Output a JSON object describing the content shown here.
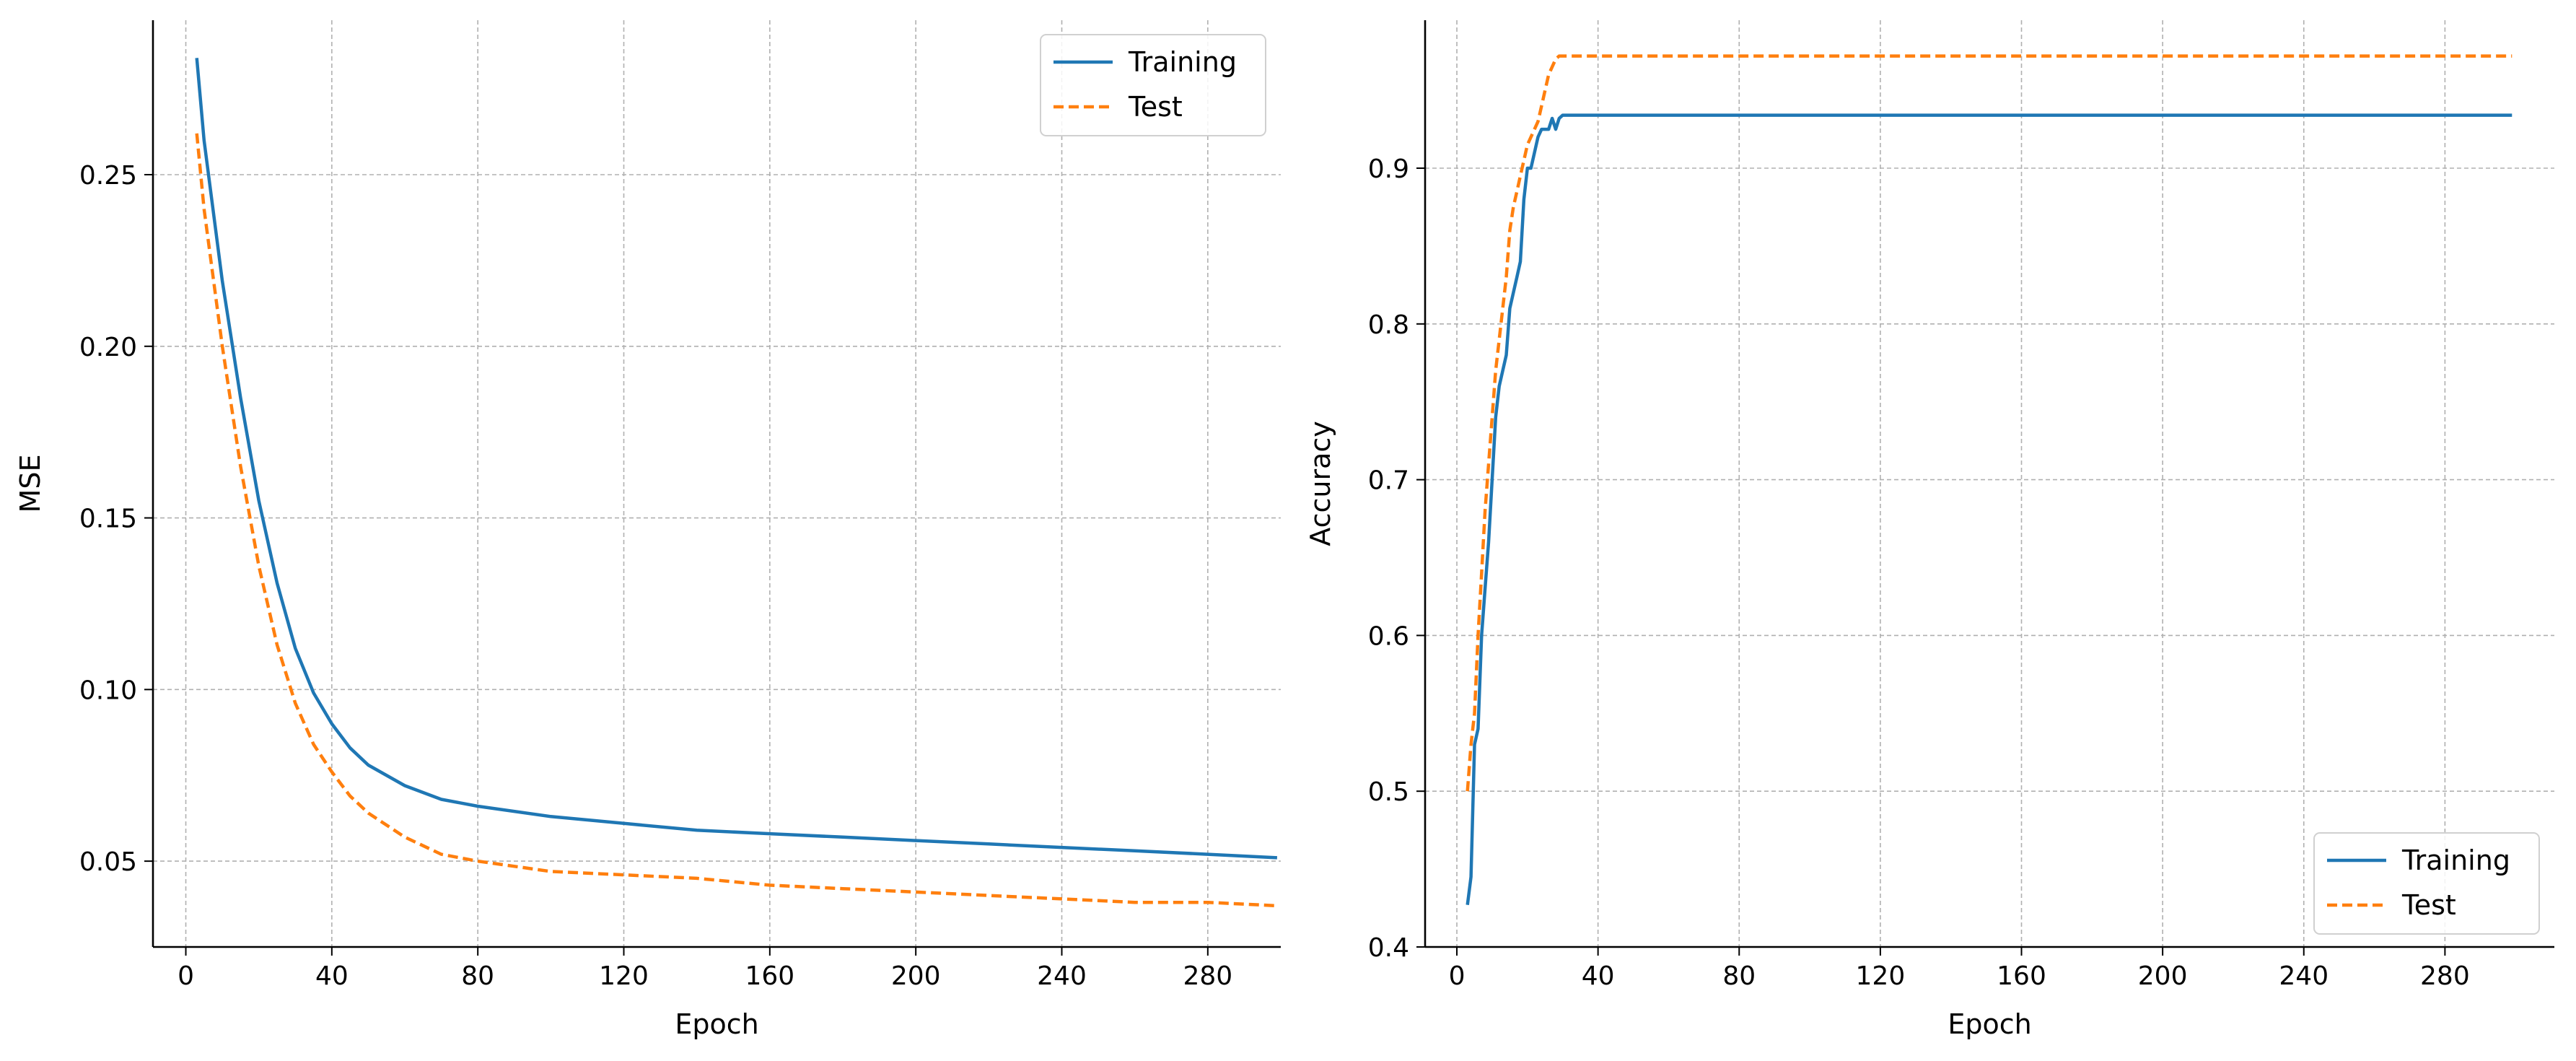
{
  "chart_data": [
    {
      "type": "line",
      "xlabel": "Epoch",
      "ylabel": "MSE",
      "xlim": [
        -9,
        300
      ],
      "ylim": [
        0.025,
        0.295
      ],
      "xticks": [
        "0",
        "40",
        "80",
        "120",
        "160",
        "200",
        "240",
        "280"
      ],
      "yticks": [
        "0.05",
        "0.10",
        "0.15",
        "0.20",
        "0.25"
      ],
      "grid": true,
      "legend_position": "top-right",
      "series": [
        {
          "name": "Training",
          "color": "#1f77b4",
          "dash": "solid",
          "x": [
            3,
            5,
            10,
            15,
            20,
            25,
            30,
            35,
            40,
            45,
            50,
            60,
            70,
            80,
            100,
            120,
            140,
            160,
            180,
            200,
            220,
            240,
            260,
            280,
            299
          ],
          "y": [
            0.284,
            0.26,
            0.219,
            0.185,
            0.155,
            0.131,
            0.112,
            0.099,
            0.09,
            0.083,
            0.078,
            0.072,
            0.068,
            0.066,
            0.063,
            0.061,
            0.059,
            0.058,
            0.057,
            0.056,
            0.055,
            0.054,
            0.053,
            0.052,
            0.051
          ]
        },
        {
          "name": "Test",
          "color": "#ff7f0e",
          "dash": "dashed",
          "x": [
            3,
            5,
            10,
            15,
            20,
            25,
            30,
            35,
            40,
            45,
            50,
            60,
            70,
            80,
            100,
            120,
            140,
            160,
            180,
            200,
            220,
            240,
            260,
            280,
            299
          ],
          "y": [
            0.262,
            0.24,
            0.2,
            0.165,
            0.136,
            0.113,
            0.096,
            0.084,
            0.076,
            0.069,
            0.064,
            0.057,
            0.052,
            0.05,
            0.047,
            0.046,
            0.045,
            0.043,
            0.042,
            0.041,
            0.04,
            0.039,
            0.038,
            0.038,
            0.037
          ]
        }
      ]
    },
    {
      "type": "line",
      "xlabel": "Epoch",
      "ylabel": "Accuracy",
      "xlim": [
        -9,
        311
      ],
      "ylim": [
        0.4,
        0.995
      ],
      "xticks": [
        "0",
        "40",
        "80",
        "120",
        "160",
        "200",
        "240",
        "280"
      ],
      "yticks": [
        "0.4",
        "0.5",
        "0.6",
        "0.7",
        "0.8",
        "0.9"
      ],
      "grid": true,
      "legend_position": "bottom-right",
      "series": [
        {
          "name": "Training",
          "color": "#1f77b4",
          "dash": "solid",
          "x": [
            3,
            4,
            5,
            6,
            7,
            8,
            9,
            10,
            11,
            12,
            13,
            14,
            15,
            16,
            17,
            18,
            19,
            20,
            21,
            22,
            23,
            24,
            25,
            26,
            27,
            28,
            29,
            30,
            35,
            100,
            200,
            299
          ],
          "y": [
            0.427,
            0.445,
            0.53,
            0.54,
            0.6,
            0.63,
            0.66,
            0.7,
            0.74,
            0.76,
            0.77,
            0.78,
            0.81,
            0.82,
            0.83,
            0.84,
            0.88,
            0.9,
            0.9,
            0.91,
            0.92,
            0.925,
            0.925,
            0.925,
            0.932,
            0.925,
            0.932,
            0.934,
            0.934,
            0.934,
            0.934,
            0.934
          ]
        },
        {
          "name": "Test",
          "color": "#ff7f0e",
          "dash": "dashed",
          "x": [
            3,
            4,
            5,
            6,
            7,
            8,
            9,
            10,
            11,
            12,
            13,
            14,
            15,
            16,
            17,
            18,
            19,
            20,
            21,
            22,
            23,
            24,
            25,
            26,
            27,
            28,
            29,
            30,
            35,
            100,
            200,
            299
          ],
          "y": [
            0.5,
            0.53,
            0.55,
            0.6,
            0.64,
            0.68,
            0.71,
            0.74,
            0.77,
            0.79,
            0.81,
            0.83,
            0.86,
            0.875,
            0.885,
            0.895,
            0.905,
            0.915,
            0.92,
            0.925,
            0.93,
            0.94,
            0.95,
            0.96,
            0.965,
            0.97,
            0.972,
            0.972,
            0.972,
            0.972,
            0.972,
            0.972
          ]
        }
      ]
    }
  ]
}
